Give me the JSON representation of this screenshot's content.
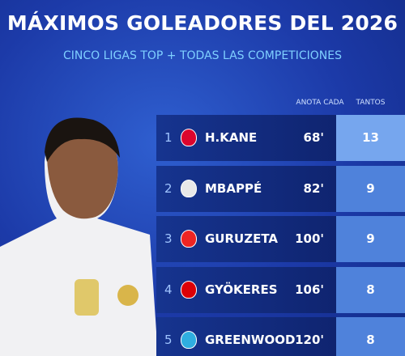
{
  "header": {
    "title": "MÁXIMOS GOLEADORES DEL 2026",
    "subtitle": "CINCO LIGAS TOP + TODAS LAS COMPETICIONES"
  },
  "table": {
    "columns": [
      "ANOTA CADA",
      "TANTOS"
    ],
    "rows": [
      {
        "rank": 1,
        "name": "H.KANE",
        "minutes": "68'",
        "goals": 13
      },
      {
        "rank": 2,
        "name": "MBAPPÉ",
        "minutes": "82'",
        "goals": 9
      },
      {
        "rank": 3,
        "name": "GURUZETA",
        "minutes": "100'",
        "goals": 9
      },
      {
        "rank": 4,
        "name": "GYÖKERES",
        "minutes": "106'",
        "goals": 8
      },
      {
        "rank": 5,
        "name": "GREENWOOD",
        "minutes": "120'",
        "goals": 8
      }
    ]
  }
}
